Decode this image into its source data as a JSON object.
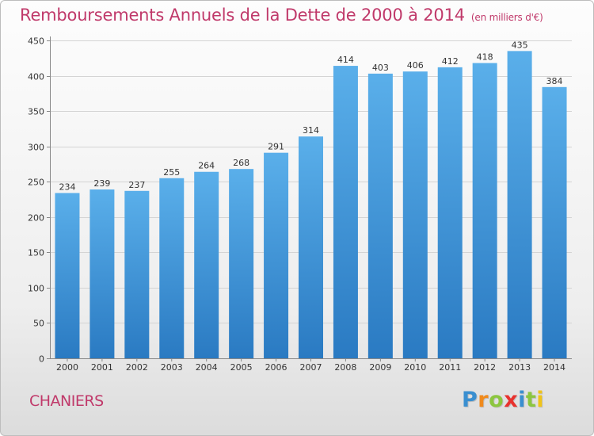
{
  "title": "Remboursements Annuels de la Dette de 2000 à 2014",
  "subtitle": "(en milliers d'€)",
  "city": "CHANIERS",
  "brand": {
    "letters": [
      "P",
      "r",
      "o",
      "x",
      "i",
      "t",
      "i"
    ],
    "colors": [
      "#3a8fd0",
      "#f08a1c",
      "#8cc63f",
      "#e8322e",
      "#3a8fd0",
      "#8cc63f",
      "#f0c419"
    ]
  },
  "colors": {
    "bar_top": "#5aafea",
    "bar_bottom": "#2a7ac2",
    "accent": "#c0396a",
    "grid": "#d4d4d4"
  },
  "chart_data": {
    "type": "bar",
    "title": "Remboursements Annuels de la Dette de 2000 à 2014",
    "xlabel": "",
    "ylabel": "",
    "categories": [
      "2000",
      "2001",
      "2002",
      "2003",
      "2004",
      "2005",
      "2006",
      "2007",
      "2008",
      "2009",
      "2010",
      "2011",
      "2012",
      "2013",
      "2014"
    ],
    "values": [
      234,
      239,
      237,
      255,
      264,
      268,
      291,
      314,
      414,
      403,
      406,
      412,
      418,
      435,
      384
    ],
    "ylim": [
      0,
      450
    ],
    "yticks": [
      0,
      50,
      100,
      150,
      200,
      250,
      300,
      350,
      400,
      450
    ],
    "grid": true
  }
}
